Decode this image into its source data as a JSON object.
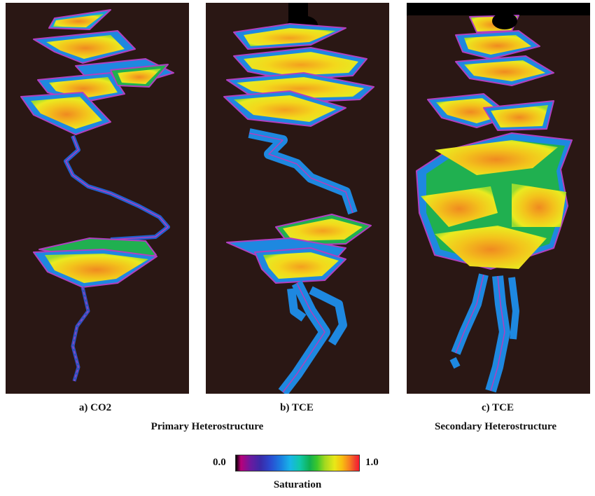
{
  "panels": [
    {
      "caption": "a) CO2"
    },
    {
      "caption": "b) TCE"
    },
    {
      "caption": "c) TCE"
    }
  ],
  "group_labels": {
    "primary": "Primary Heterostructure",
    "secondary": "Secondary Heterostructure"
  },
  "colorbar": {
    "min_label": "0.0",
    "max_label": "1.0",
    "title": "Saturation"
  },
  "colors": {
    "background": "#2a1714",
    "outline": "#b040c0",
    "low": "#1e88e0",
    "mid": "#20b050",
    "high": "#f0e020",
    "peak": "#f08a20"
  }
}
